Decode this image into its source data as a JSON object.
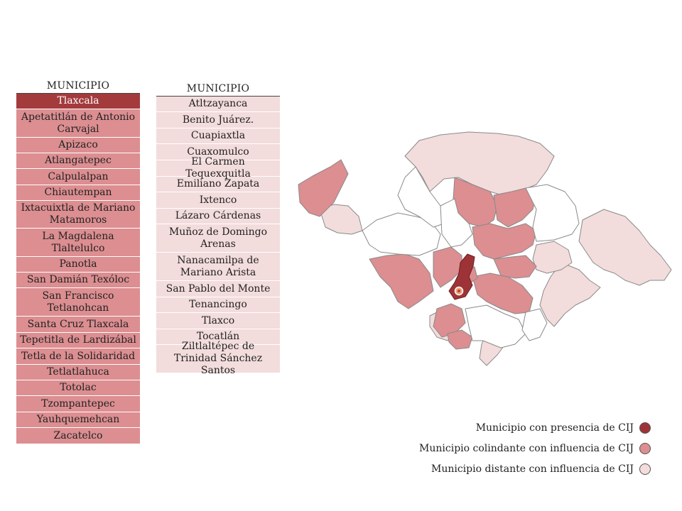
{
  "table_left": {
    "header": "MUNICIPIO",
    "rows": [
      "Tlaxcala",
      "Apetatitlán de Antonio Carvajal",
      "Apizaco",
      "Atlangatepec",
      "Calpulalpan",
      "Chiautempan",
      "Ixtacuixtla de Mariano Matamoros",
      "La Magdalena Tlaltelulco",
      "Panotla",
      "San Damián Texóloc",
      "San Francisco Tetlanohcan",
      "Santa Cruz Tlaxcala",
      "Tepetitla de Lardizábal",
      "Tetla de la Solidaridad",
      "Tetlatlahuca",
      "Totolac",
      "Tzompantepec",
      "Yauhquemehcan",
      "Zacatelco"
    ]
  },
  "table_right": {
    "header": "MUNICIPIO",
    "rows": [
      "Atltzayanca",
      "Benito Juárez.",
      "Cuapiaxtla",
      "Cuaxomulco",
      "El Carmen Tequexquitla",
      "Emiliano Zapata",
      "Ixtenco",
      "Lázaro Cárdenas",
      "Muñoz de Domingo Arenas",
      "Nanacamilpa de Mariano Arista",
      "San Pablo del Monte",
      "Tenancingo",
      "Tlaxco",
      "Tocatlán",
      "Ziltlaltépec de Trinidad Sánchez Santos"
    ]
  },
  "legend": [
    {
      "label": "Municipio con presencia de CIJ",
      "color": "#9e3337"
    },
    {
      "label": "Municipio colindante con influencia de CIJ",
      "color": "#dc8e91"
    },
    {
      "label": "Municipio distante con influencia de CIJ",
      "color": "#f3dcdc"
    }
  ],
  "colors": {
    "presence": "#9e3337",
    "adjacent": "#dc8e91",
    "distant": "#f3dcdc",
    "none": "#ffffff",
    "border": "#8a8a8a"
  }
}
